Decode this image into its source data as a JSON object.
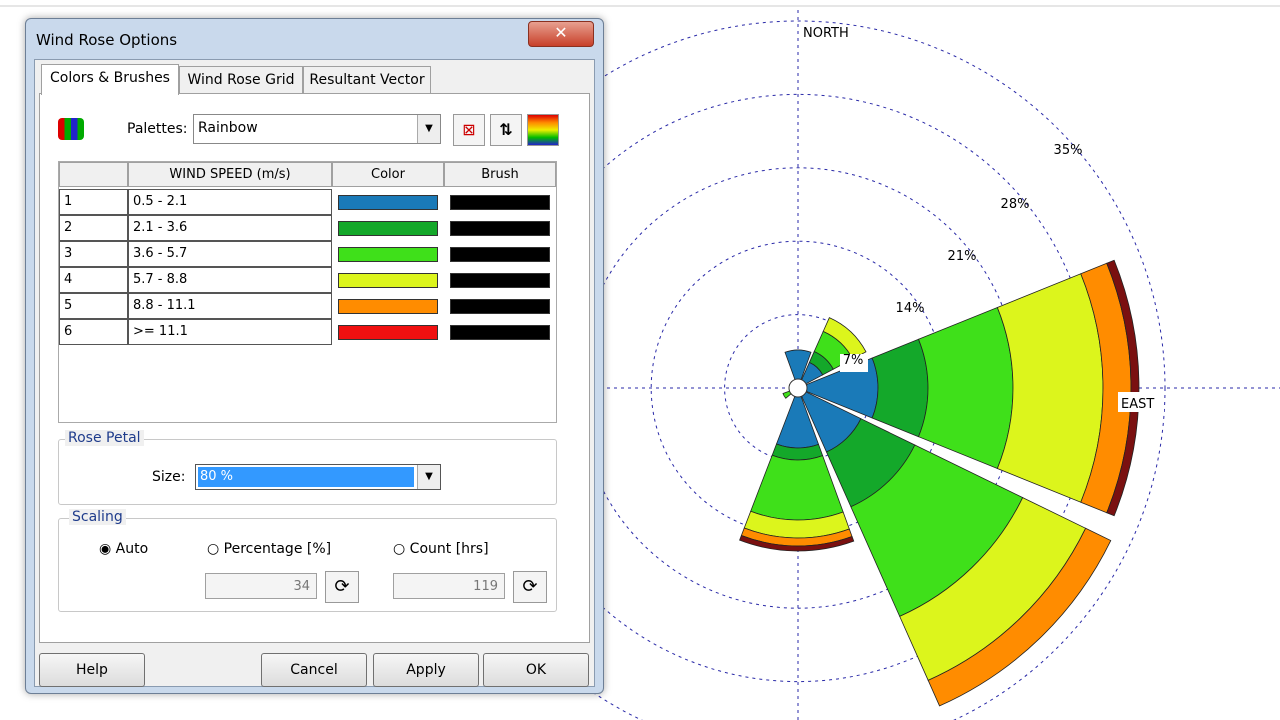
{
  "dialog": {
    "title": "Wind Rose Options",
    "tabs": [
      "Colors & Brushes",
      "Wind Rose Grid",
      "Resultant Vector"
    ],
    "palette_label": "Palettes:",
    "palette_value": "Rainbow",
    "table": {
      "headers": [
        "WIND SPEED (m/s)",
        "Color",
        "Brush"
      ],
      "rows": [
        {
          "index": "1",
          "range": "0.5 -  2.1",
          "color": "#1a7ab8",
          "brush": "#000000"
        },
        {
          "index": "2",
          "range": "2.1 -  3.6",
          "color": "#14a82a",
          "brush": "#000000"
        },
        {
          "index": "3",
          "range": "3.6 -  5.7",
          "color": "#3fe01a",
          "brush": "#000000"
        },
        {
          "index": "4",
          "range": "5.7 -  8.8",
          "color": "#dcf51c",
          "brush": "#000000"
        },
        {
          "index": "5",
          "range": "8.8 - 11.1",
          "color": "#ff8c00",
          "brush": "#000000"
        },
        {
          "index": "6",
          "range": ">= 11.1",
          "color": "#f01010",
          "brush": "#000000"
        }
      ]
    },
    "rose_petal": {
      "title": "Rose Petal",
      "size_label": "Size:",
      "size_value": "80 %"
    },
    "scaling": {
      "title": "Scaling",
      "options": [
        "Auto",
        "Percentage [%]",
        "Count [hrs]"
      ],
      "percentage_value": "34",
      "count_value": "119"
    },
    "buttons": [
      "Help",
      "Cancel",
      "Apply",
      "OK"
    ]
  },
  "wind_rose": {
    "north_label": "NORTH",
    "east_label": "EAST",
    "ring_labels": [
      "7%",
      "14%",
      "21%",
      "28%",
      "35%"
    ]
  }
}
